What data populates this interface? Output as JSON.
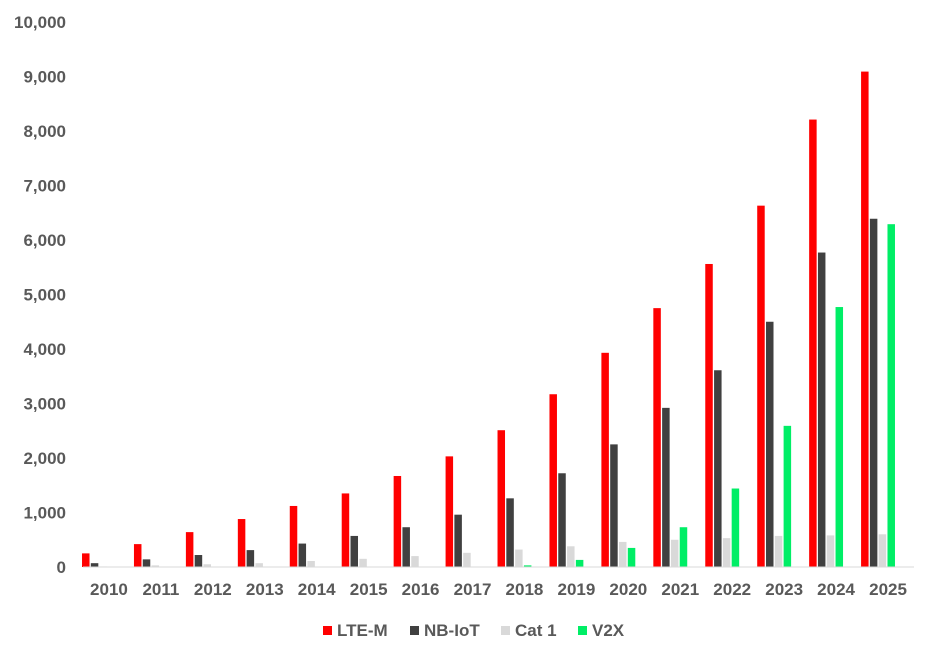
{
  "chart_data": {
    "type": "bar",
    "title": "",
    "xlabel": "",
    "ylabel": "",
    "ylim": [
      0,
      10000
    ],
    "yticks": [
      0,
      1000,
      2000,
      3000,
      4000,
      5000,
      6000,
      7000,
      8000,
      9000,
      10000
    ],
    "ytick_labels": [
      "0",
      "1,000",
      "2,000",
      "3,000",
      "4,000",
      "5,000",
      "6,000",
      "7,000",
      "8,000",
      "9,000",
      "10,000"
    ],
    "grid": false,
    "legend_position": "bottom",
    "categories": [
      "2010",
      "2011",
      "2012",
      "2013",
      "2014",
      "2015",
      "2016",
      "2017",
      "2018",
      "2019",
      "2020",
      "2021",
      "2022",
      "2023",
      "2024",
      "2025"
    ],
    "series": [
      {
        "name": "LTE-M",
        "color": "#ff0000",
        "values": [
          250,
          420,
          640,
          880,
          1120,
          1350,
          1670,
          2030,
          2510,
          3170,
          3930,
          4750,
          5560,
          6630,
          8210,
          9090
        ]
      },
      {
        "name": "NB-IoT",
        "color": "#404040",
        "values": [
          70,
          140,
          220,
          310,
          430,
          570,
          730,
          960,
          1260,
          1720,
          2250,
          2920,
          3610,
          4500,
          5770,
          6390
        ]
      },
      {
        "name": "Cat 1",
        "color": "#d9d9d9",
        "values": [
          10,
          30,
          50,
          70,
          110,
          150,
          200,
          260,
          320,
          380,
          460,
          500,
          530,
          570,
          580,
          600
        ]
      },
      {
        "name": "V2X",
        "color": "#00ee66",
        "values": [
          0,
          0,
          0,
          0,
          0,
          0,
          0,
          0,
          30,
          130,
          350,
          730,
          1440,
          2590,
          4770,
          6290
        ]
      }
    ]
  }
}
